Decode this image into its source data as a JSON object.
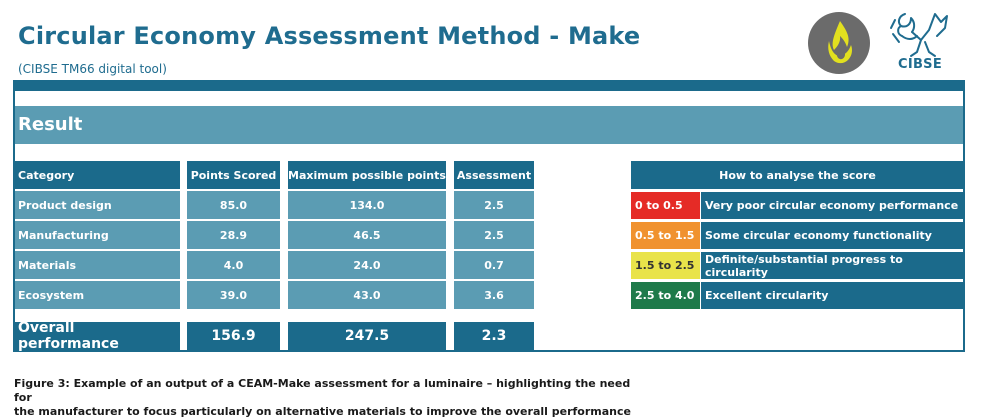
{
  "header": {
    "title": "Circular Economy Assessment Method - Make",
    "subtitle": "(CIBSE TM66 digital tool)",
    "logo_text": "CIBSE"
  },
  "result_label": "Result",
  "table": {
    "columns": [
      "Category",
      "Points Scored",
      "Maximum possible points",
      "Assessment"
    ],
    "rows": [
      {
        "category": "Product design",
        "points": "85.0",
        "max": "134.0",
        "assessment": "2.5"
      },
      {
        "category": "Manufacturing",
        "points": "28.9",
        "max": "46.5",
        "assessment": "2.5"
      },
      {
        "category": "Materials",
        "points": "4.0",
        "max": "24.0",
        "assessment": "0.7"
      },
      {
        "category": "Ecosystem",
        "points": "39.0",
        "max": "43.0",
        "assessment": "3.6"
      }
    ],
    "overall": {
      "label": "Overall performance",
      "points": "156.9",
      "max": "247.5",
      "assessment": "2.3"
    }
  },
  "legend": {
    "title": "How to analyse the score",
    "items": [
      {
        "range": "0 to 0.5",
        "text": "Very poor circular economy performance",
        "color": "#e52b26",
        "text_color": "#ffffff"
      },
      {
        "range": "0.5 to 1.5",
        "text": "Some circular economy functionality",
        "color": "#f0922f",
        "text_color": "#ffffff"
      },
      {
        "range": "1.5 to 2.5",
        "text": "Definite/substantial progress to circularity",
        "color": "#e9e34a",
        "text_color": "#333333"
      },
      {
        "range": "2.5 to 4.0",
        "text": "Excellent circularity",
        "color": "#1e7a4a",
        "text_color": "#ffffff"
      }
    ]
  },
  "caption": {
    "line1": "Figure 3: Example of an output of a CEAM-Make assessment for a luminaire – highlighting the need for",
    "line2": "the manufacturer to focus particularly on alternative materials to improve the overall performance"
  },
  "colors": {
    "brand_dark": "#1b6a8b",
    "brand_light": "#5b9cb3",
    "title": "#1f6c8f",
    "logo_gray": "#6b6b6b",
    "logo_yellow": "#e2e01f"
  },
  "icons": {
    "flame_logo": "flame-logo-icon",
    "griffin_logo": "cibse-griffin-icon"
  }
}
